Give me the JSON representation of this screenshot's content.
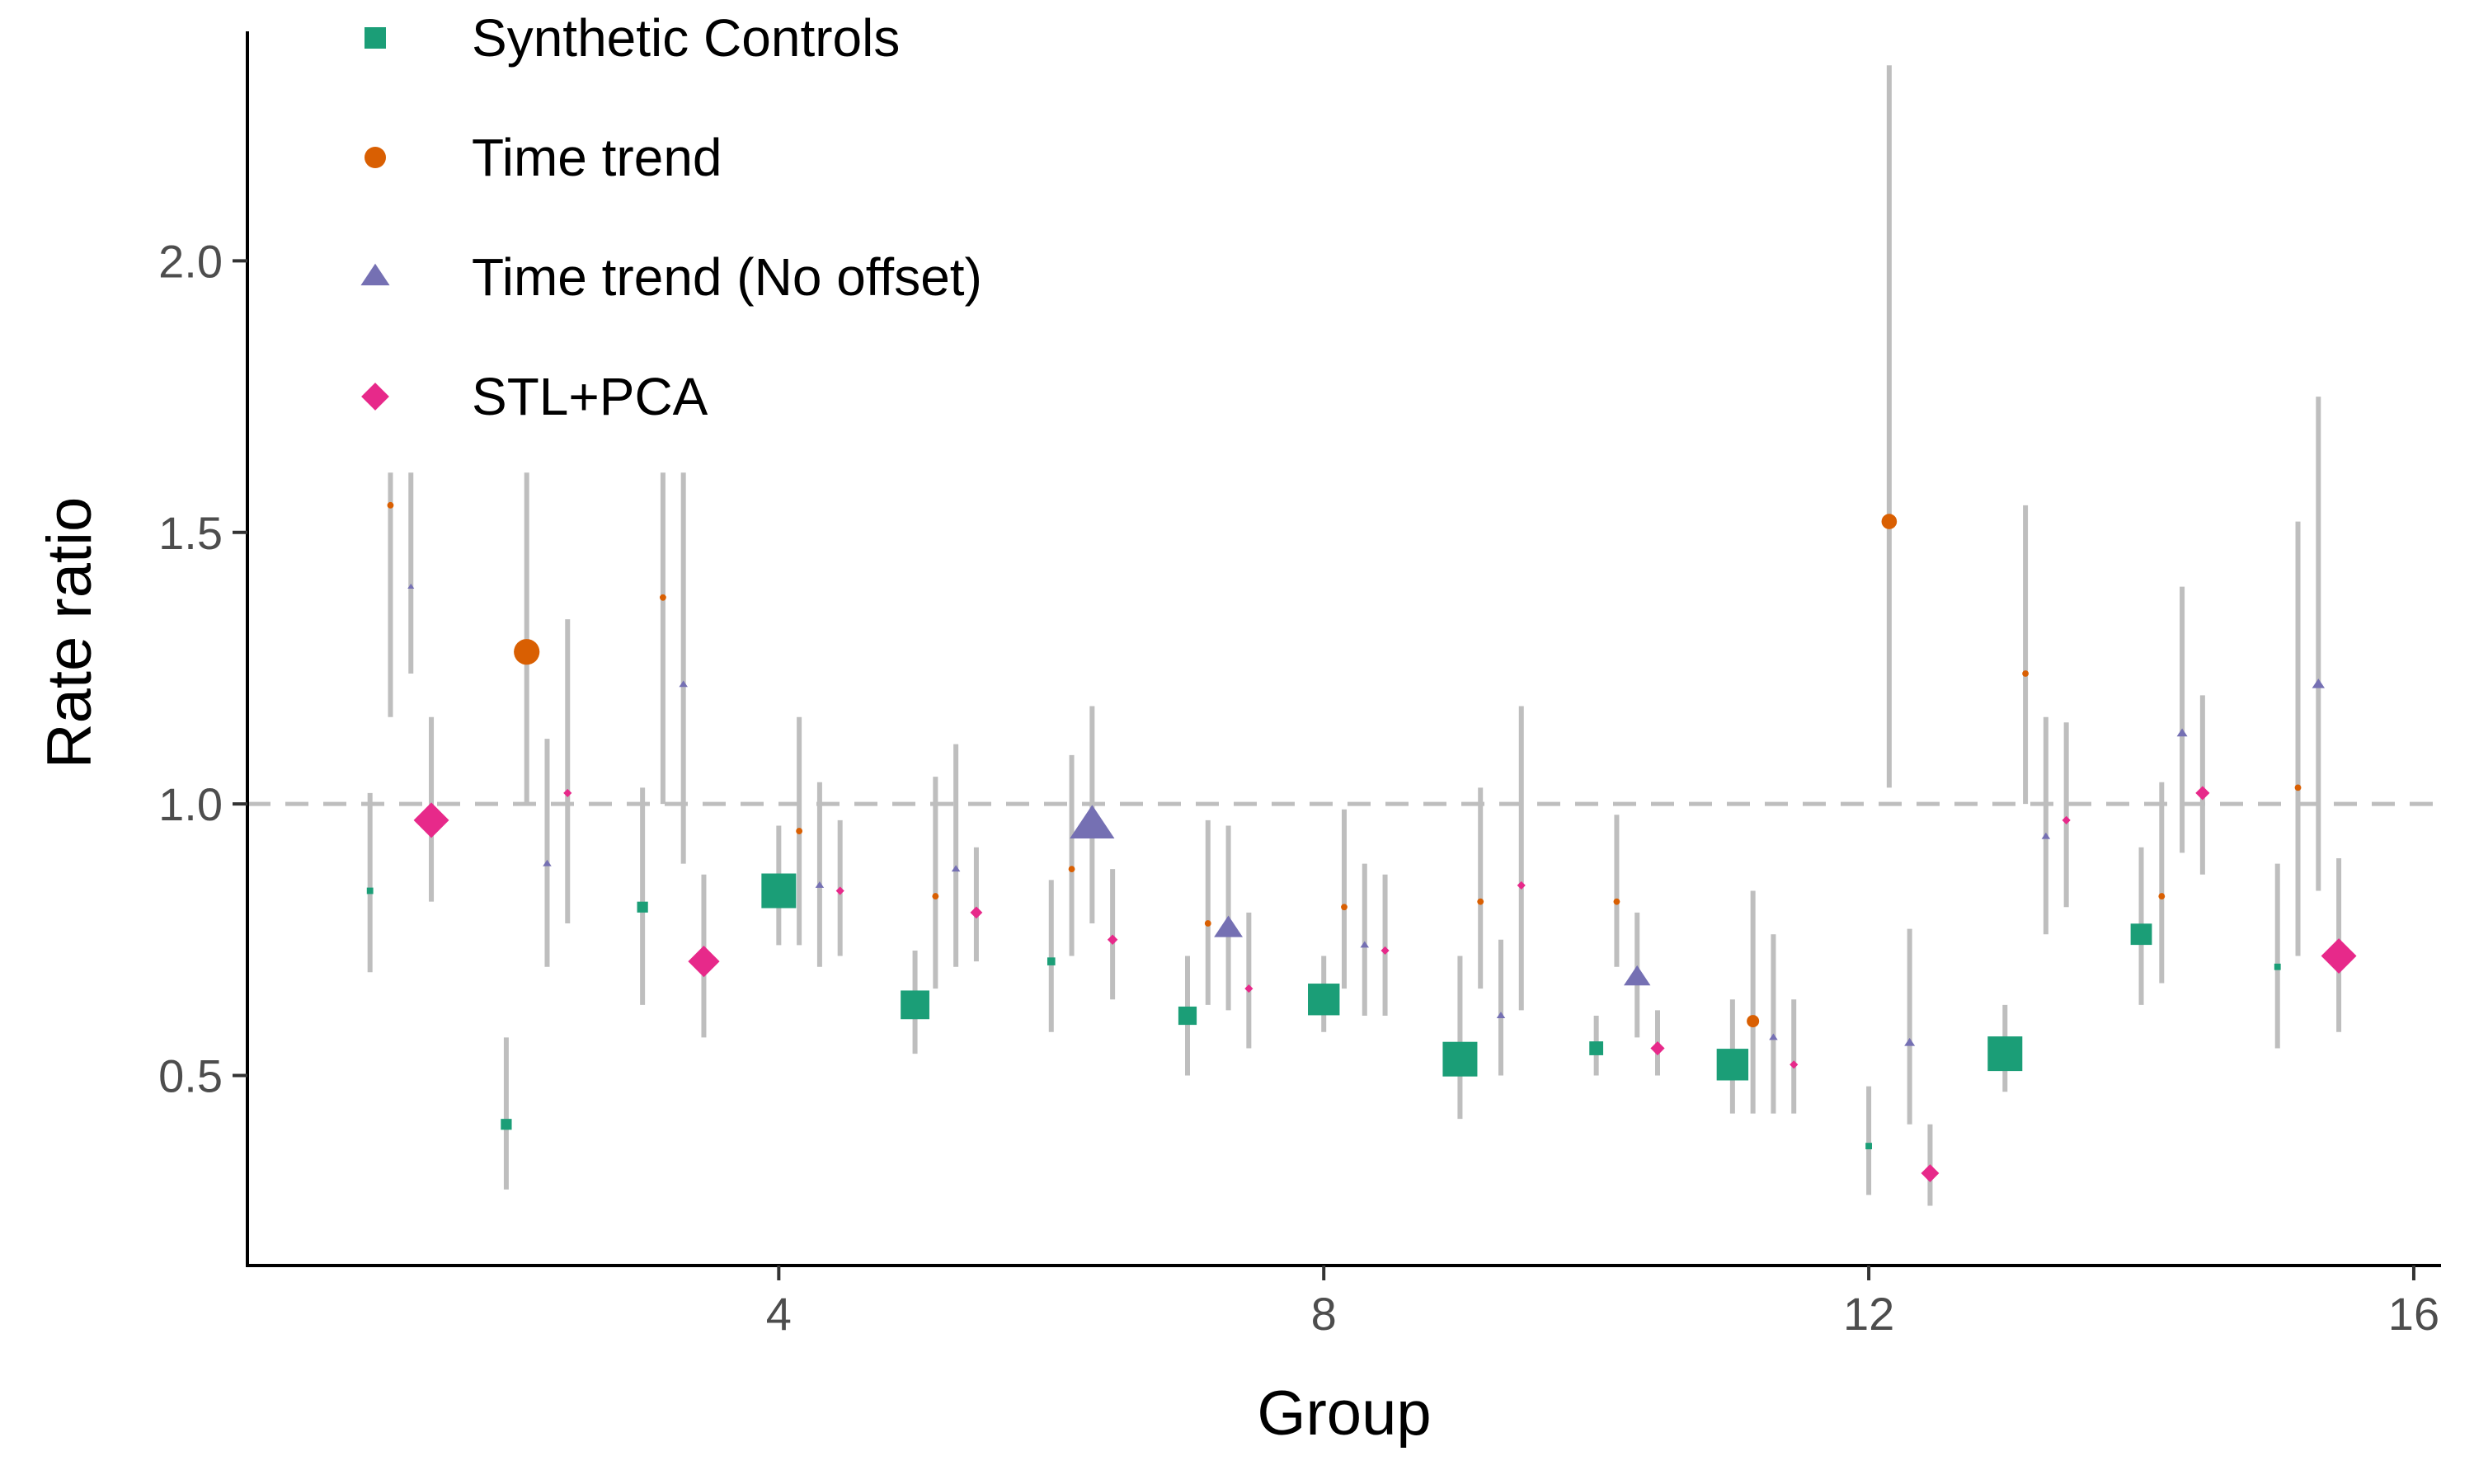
{
  "chart_data": {
    "type": "scatter",
    "title": "",
    "xlabel": "Group",
    "ylabel": "Rate ratio",
    "xlim": [
      0.1,
      16.2
    ],
    "ylim": [
      0.15,
      2.45
    ],
    "x_ticks": [
      4,
      8,
      12,
      16
    ],
    "x_tick_labels": [
      "4",
      "8",
      "12",
      "16"
    ],
    "y_ticks": [
      0.5,
      1.0,
      1.5,
      2.0
    ],
    "y_tick_labels": [
      "0.5",
      "1.0",
      "1.5",
      "2.0"
    ],
    "reference_line": {
      "y": 1.0,
      "style": "dashed",
      "color": "#bebebe"
    },
    "grid": false,
    "legend": {
      "position": "top-left"
    },
    "errorbar_color": "#bebebe",
    "series": [
      {
        "name": "Synthetic Controls",
        "color": "#1b9e77",
        "shape": "square",
        "points": [
          {
            "x": 1.0,
            "y": 0.84,
            "lo": 0.69,
            "hi": 1.02,
            "size": 0.05
          },
          {
            "x": 2.0,
            "y": 0.41,
            "lo": 0.29,
            "hi": 0.57,
            "size": 0.2
          },
          {
            "x": 3.0,
            "y": 0.81,
            "lo": 0.63,
            "hi": 1.03,
            "size": 0.2
          },
          {
            "x": 4.0,
            "y": 0.84,
            "lo": 0.74,
            "hi": 0.96,
            "size": 1.0
          },
          {
            "x": 5.0,
            "y": 0.63,
            "lo": 0.54,
            "hi": 0.73,
            "size": 0.8
          },
          {
            "x": 6.0,
            "y": 0.71,
            "lo": 0.58,
            "hi": 0.86,
            "size": 0.1
          },
          {
            "x": 7.0,
            "y": 0.61,
            "lo": 0.5,
            "hi": 0.72,
            "size": 0.45
          },
          {
            "x": 8.0,
            "y": 0.64,
            "lo": 0.58,
            "hi": 0.72,
            "size": 0.9
          },
          {
            "x": 9.0,
            "y": 0.53,
            "lo": 0.42,
            "hi": 0.72,
            "size": 1.0
          },
          {
            "x": 10.0,
            "y": 0.55,
            "lo": 0.5,
            "hi": 0.61,
            "size": 0.3
          },
          {
            "x": 11.0,
            "y": 0.52,
            "lo": 0.43,
            "hi": 0.64,
            "size": 0.9
          },
          {
            "x": 12.0,
            "y": 0.37,
            "lo": 0.28,
            "hi": 0.48,
            "size": 0.05
          },
          {
            "x": 13.0,
            "y": 0.54,
            "lo": 0.47,
            "hi": 0.63,
            "size": 1.0
          },
          {
            "x": 14.0,
            "y": 0.76,
            "lo": 0.63,
            "hi": 0.92,
            "size": 0.55
          },
          {
            "x": 15.0,
            "y": 0.7,
            "lo": 0.55,
            "hi": 0.89,
            "size": 0.05
          }
        ]
      },
      {
        "name": "Time trend",
        "color": "#d95f02",
        "shape": "circle",
        "points": [
          {
            "x": 1.15,
            "y": 1.55,
            "lo": 1.16,
            "hi": 1.61,
            "size": 0.05
          },
          {
            "x": 2.15,
            "y": 1.28,
            "lo": 1.0,
            "hi": 1.61,
            "size": 0.7
          },
          {
            "x": 3.15,
            "y": 1.38,
            "lo": 1.0,
            "hi": 1.61,
            "size": 0.05
          },
          {
            "x": 4.15,
            "y": 0.95,
            "lo": 0.74,
            "hi": 1.16,
            "size": 0.05
          },
          {
            "x": 5.15,
            "y": 0.83,
            "lo": 0.66,
            "hi": 1.05,
            "size": 0.05
          },
          {
            "x": 6.15,
            "y": 0.88,
            "lo": 0.72,
            "hi": 1.09,
            "size": 0.05
          },
          {
            "x": 7.15,
            "y": 0.78,
            "lo": 0.63,
            "hi": 0.97,
            "size": 0.05
          },
          {
            "x": 8.15,
            "y": 0.81,
            "lo": 0.66,
            "hi": 0.99,
            "size": 0.05
          },
          {
            "x": 9.15,
            "y": 0.82,
            "lo": 0.66,
            "hi": 1.03,
            "size": 0.05
          },
          {
            "x": 10.15,
            "y": 0.82,
            "lo": 0.7,
            "hi": 0.98,
            "size": 0.05
          },
          {
            "x": 11.15,
            "y": 0.6,
            "lo": 0.43,
            "hi": 0.84,
            "size": 0.25
          },
          {
            "x": 12.15,
            "y": 1.52,
            "lo": 1.03,
            "hi": 2.36,
            "size": 0.35
          },
          {
            "x": 13.15,
            "y": 1.24,
            "lo": 1.0,
            "hi": 1.55,
            "size": 0.05
          },
          {
            "x": 14.15,
            "y": 0.83,
            "lo": 0.67,
            "hi": 1.04,
            "size": 0.05
          },
          {
            "x": 15.15,
            "y": 1.03,
            "lo": 0.72,
            "hi": 1.52,
            "size": 0.05
          }
        ]
      },
      {
        "name": "Time trend (No offset)",
        "color": "#7570b3",
        "shape": "triangle",
        "points": [
          {
            "x": 1.3,
            "y": 1.4,
            "lo": 1.24,
            "hi": 1.61,
            "size": 0.0
          },
          {
            "x": 2.3,
            "y": 0.89,
            "lo": 0.7,
            "hi": 1.12,
            "size": 0.05
          },
          {
            "x": 3.3,
            "y": 1.22,
            "lo": 0.89,
            "hi": 1.61,
            "size": 0.05
          },
          {
            "x": 4.3,
            "y": 0.85,
            "lo": 0.7,
            "hi": 1.04,
            "size": 0.05
          },
          {
            "x": 5.3,
            "y": 0.88,
            "lo": 0.7,
            "hi": 1.11,
            "size": 0.05
          },
          {
            "x": 6.3,
            "y": 0.96,
            "lo": 0.78,
            "hi": 1.18,
            "size": 0.95
          },
          {
            "x": 7.3,
            "y": 0.77,
            "lo": 0.62,
            "hi": 0.96,
            "size": 0.55
          },
          {
            "x": 8.3,
            "y": 0.74,
            "lo": 0.61,
            "hi": 0.89,
            "size": 0.05
          },
          {
            "x": 9.3,
            "y": 0.61,
            "lo": 0.5,
            "hi": 0.75,
            "size": 0.05
          },
          {
            "x": 10.3,
            "y": 0.68,
            "lo": 0.57,
            "hi": 0.8,
            "size": 0.5
          },
          {
            "x": 11.3,
            "y": 0.57,
            "lo": 0.43,
            "hi": 0.76,
            "size": 0.05
          },
          {
            "x": 12.3,
            "y": 0.56,
            "lo": 0.41,
            "hi": 0.77,
            "size": 0.1
          },
          {
            "x": 13.3,
            "y": 0.94,
            "lo": 0.76,
            "hi": 1.16,
            "size": 0.05
          },
          {
            "x": 14.3,
            "y": 1.13,
            "lo": 0.91,
            "hi": 1.4,
            "size": 0.1
          },
          {
            "x": 15.3,
            "y": 1.22,
            "lo": 0.84,
            "hi": 1.75,
            "size": 0.15
          }
        ]
      },
      {
        "name": "STL+PCA",
        "color": "#e7298a",
        "shape": "diamond",
        "points": [
          {
            "x": 1.45,
            "y": 0.97,
            "lo": 0.82,
            "hi": 1.16,
            "size": 0.75
          },
          {
            "x": 2.45,
            "y": 1.02,
            "lo": 0.78,
            "hi": 1.34,
            "size": 0.05
          },
          {
            "x": 3.45,
            "y": 0.71,
            "lo": 0.57,
            "hi": 0.87,
            "size": 0.65
          },
          {
            "x": 4.45,
            "y": 0.84,
            "lo": 0.72,
            "hi": 0.97,
            "size": 0.05
          },
          {
            "x": 5.45,
            "y": 0.8,
            "lo": 0.71,
            "hi": 0.92,
            "size": 0.15
          },
          {
            "x": 6.45,
            "y": 0.75,
            "lo": 0.64,
            "hi": 0.88,
            "size": 0.1
          },
          {
            "x": 7.45,
            "y": 0.66,
            "lo": 0.55,
            "hi": 0.8,
            "size": 0.05
          },
          {
            "x": 8.45,
            "y": 0.73,
            "lo": 0.61,
            "hi": 0.87,
            "size": 0.05
          },
          {
            "x": 9.45,
            "y": 0.85,
            "lo": 0.62,
            "hi": 1.18,
            "size": 0.05
          },
          {
            "x": 10.45,
            "y": 0.55,
            "lo": 0.5,
            "hi": 0.62,
            "size": 0.2
          },
          {
            "x": 11.45,
            "y": 0.52,
            "lo": 0.43,
            "hi": 0.64,
            "size": 0.05
          },
          {
            "x": 12.45,
            "y": 0.32,
            "lo": 0.26,
            "hi": 0.41,
            "size": 0.3
          },
          {
            "x": 13.45,
            "y": 0.97,
            "lo": 0.81,
            "hi": 1.15,
            "size": 0.05
          },
          {
            "x": 14.45,
            "y": 1.02,
            "lo": 0.87,
            "hi": 1.2,
            "size": 0.2
          },
          {
            "x": 15.45,
            "y": 0.72,
            "lo": 0.58,
            "hi": 0.9,
            "size": 0.75
          }
        ]
      }
    ]
  }
}
